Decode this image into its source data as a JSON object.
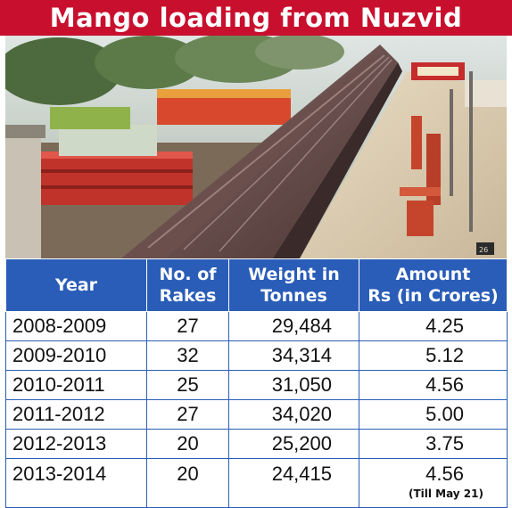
{
  "title": "Mango loading from Nuzvid",
  "photo": {
    "caption": "train-at-platform-photo"
  },
  "table": {
    "headers": {
      "year": "Year",
      "rakes_line1": "No. of",
      "rakes_line2": "Rakes",
      "weight_line1": "Weight in",
      "weight_line2": "Tonnes",
      "amount_line1": "Amount",
      "amount_line2": "Rs (in Crores)"
    },
    "rows": [
      {
        "year": "2008-2009",
        "rakes": "27",
        "weight": "29,484",
        "amount": "4.25"
      },
      {
        "year": "2009-2010",
        "rakes": "32",
        "weight": "34,314",
        "amount": "5.12"
      },
      {
        "year": "2010-2011",
        "rakes": "25",
        "weight": "31,050",
        "amount": "4.56"
      },
      {
        "year": "2011-2012",
        "rakes": "27",
        "weight": "34,020",
        "amount": "5.00"
      },
      {
        "year": "2012-2013",
        "rakes": "20",
        "weight": "25,200",
        "amount": "3.75"
      },
      {
        "year": "2013-2014",
        "rakes": "20",
        "weight": "24,415",
        "amount": "4.56",
        "note": "(Till May 21)"
      }
    ]
  },
  "colors": {
    "title_bg": "#c8102e",
    "header_bg": "#2a5db8",
    "border": "#2a5db8"
  }
}
